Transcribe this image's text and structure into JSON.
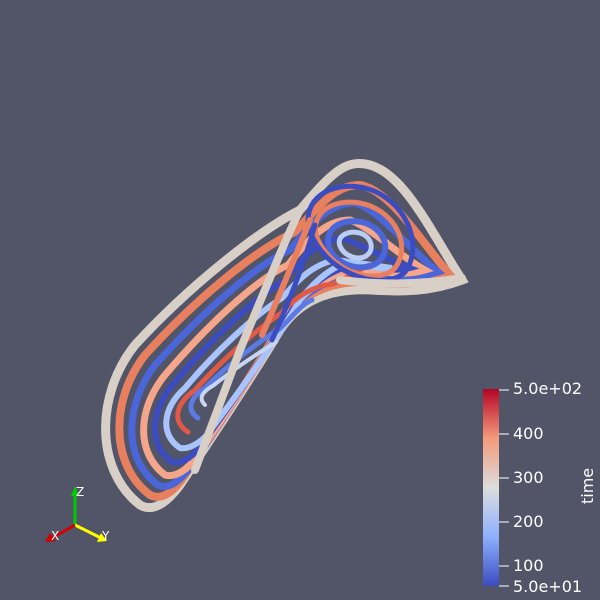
{
  "colorbar": {
    "title": "time",
    "labels": {
      "max": "5.0e+02",
      "t400": "400",
      "t300": "300",
      "t200": "200",
      "t100": "100",
      "min": "5.0e+01"
    },
    "colors": {
      "high": "#b40426",
      "mid": "#dddddd",
      "low": "#3b4cc0"
    }
  },
  "orientation_axes": {
    "x": "X",
    "y": "Y",
    "z": "Z",
    "x_color": "#d40000",
    "y_color": "#ffff00",
    "z_color": "#00cc00"
  },
  "background": "#525468"
}
